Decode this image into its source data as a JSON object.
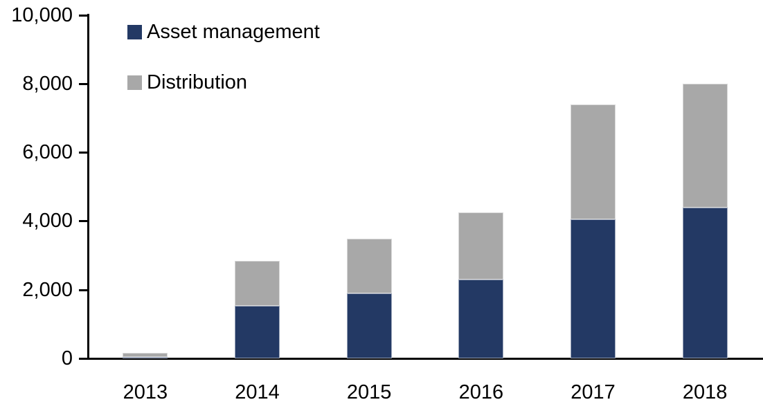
{
  "chart_data": {
    "type": "bar",
    "stacked": true,
    "title": "",
    "xlabel": "",
    "ylabel": "",
    "categories": [
      "2013",
      "2014",
      "2015",
      "2016",
      "2017",
      "2018"
    ],
    "series": [
      {
        "name": "Asset management",
        "color": "#233964",
        "values": [
          60,
          1550,
          1900,
          2300,
          4050,
          4400
        ]
      },
      {
        "name": "Distribution",
        "color": "#A8A8A8",
        "values": [
          120,
          1300,
          1600,
          1950,
          3350,
          3600
        ]
      }
    ],
    "totals": [
      180,
      2850,
      3500,
      4250,
      7400,
      8000
    ],
    "y_axis": {
      "min": 0,
      "max": 10000,
      "tick_step": 2000,
      "tick_labels": [
        "0",
        "2,000",
        "4,000",
        "6,000",
        "8,000",
        "10,000"
      ]
    },
    "legend_position": "top-left",
    "grid": false,
    "axis_color": "#000000",
    "background_color": "#FFFFFF",
    "text_color": "#000000"
  }
}
